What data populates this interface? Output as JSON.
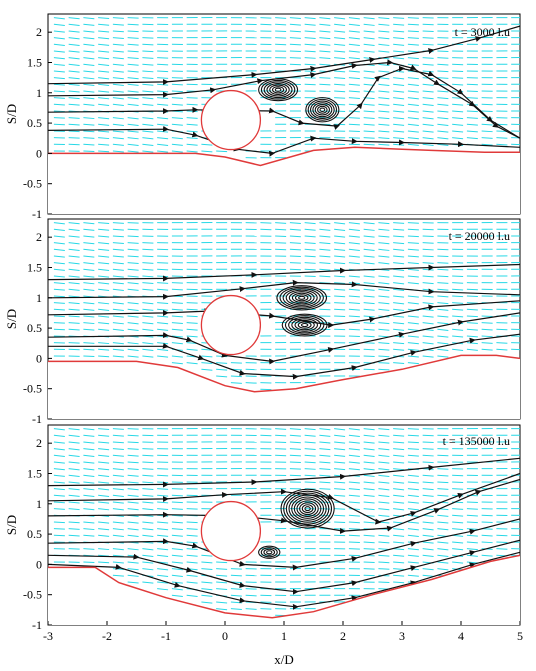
{
  "chart_data": [
    {
      "type": "flow_field",
      "annotation": "t = 3000 l.u",
      "ylabel": "S/D",
      "xlim": [
        -3,
        5
      ],
      "ylim": [
        -1,
        2.3
      ],
      "yticks": [
        "2",
        "1.5",
        "1",
        "0.5",
        "0",
        "-0.5",
        "-1"
      ],
      "cylinder": {
        "x": 0.1,
        "y": 0.55,
        "r": 0.5
      },
      "bed_profile": [
        [
          -3,
          0
        ],
        [
          -0.5,
          0
        ],
        [
          0,
          -0.06
        ],
        [
          0.6,
          -0.2
        ],
        [
          1.5,
          0.05
        ],
        [
          2.2,
          0.1
        ],
        [
          3,
          0.07
        ],
        [
          3.5,
          0.05
        ],
        [
          4.4,
          0.02
        ],
        [
          5,
          0.02
        ]
      ],
      "streamlines": [
        [
          [
            -3,
            1.15
          ],
          [
            -1,
            1.18
          ],
          [
            0.5,
            1.3
          ],
          [
            1.5,
            1.4
          ],
          [
            2.5,
            1.55
          ],
          [
            3.5,
            1.7
          ],
          [
            4.3,
            1.9
          ],
          [
            5,
            2.1
          ]
        ],
        [
          [
            -3,
            0.95
          ],
          [
            -1,
            0.97
          ],
          [
            -0.2,
            1.05
          ],
          [
            0.6,
            1.2
          ],
          [
            1.5,
            1.3
          ],
          [
            2.2,
            1.45
          ],
          [
            2.8,
            1.5
          ],
          [
            3.2,
            1.4
          ],
          [
            3.6,
            1.15
          ],
          [
            4.2,
            0.8
          ],
          [
            4.6,
            0.45
          ],
          [
            5,
            0.25
          ]
        ],
        [
          [
            -3,
            0.68
          ],
          [
            -1,
            0.7
          ],
          [
            -0.5,
            0.72
          ],
          [
            0.8,
            0.7
          ],
          [
            1.3,
            0.5
          ],
          [
            1.9,
            0.45
          ],
          [
            2.3,
            0.8
          ],
          [
            2.6,
            1.25
          ],
          [
            3,
            1.4
          ],
          [
            3.5,
            1.3
          ],
          [
            4,
            1.0
          ],
          [
            4.5,
            0.55
          ],
          [
            5,
            0.25
          ]
        ],
        [
          [
            -3,
            0.38
          ],
          [
            -1,
            0.4
          ],
          [
            -0.5,
            0.3
          ],
          [
            0.2,
            0.07
          ],
          [
            0.8,
            0.0
          ],
          [
            1.5,
            0.25
          ],
          [
            2.2,
            0.2
          ],
          [
            3,
            0.18
          ],
          [
            4,
            0.15
          ],
          [
            5,
            0.1
          ]
        ]
      ],
      "vortices": [
        {
          "x": 0.9,
          "y": 1.05,
          "rx": 0.33,
          "ry": 0.18,
          "n": 7
        },
        {
          "x": 1.65,
          "y": 0.72,
          "rx": 0.28,
          "ry": 0.2,
          "n": 7
        }
      ]
    },
    {
      "type": "flow_field",
      "annotation": "t = 20000 l.u",
      "ylabel": "S/D",
      "xlim": [
        -3,
        5
      ],
      "ylim": [
        -1,
        2.3
      ],
      "yticks": [
        "2",
        "1.5",
        "1",
        "0.5",
        "0",
        "-0.5",
        "-1"
      ],
      "cylinder": {
        "x": 0.1,
        "y": 0.55,
        "r": 0.5
      },
      "bed_profile": [
        [
          -3,
          -0.05
        ],
        [
          -1.5,
          -0.05
        ],
        [
          -0.8,
          -0.15
        ],
        [
          0,
          -0.45
        ],
        [
          0.5,
          -0.55
        ],
        [
          1.2,
          -0.5
        ],
        [
          2,
          -0.35
        ],
        [
          3,
          -0.18
        ],
        [
          4,
          0.05
        ],
        [
          4.6,
          0.05
        ],
        [
          5,
          0.0
        ]
      ],
      "streamlines": [
        [
          [
            -3,
            1.3
          ],
          [
            -1,
            1.32
          ],
          [
            0.5,
            1.38
          ],
          [
            2,
            1.45
          ],
          [
            3.5,
            1.5
          ],
          [
            5,
            1.55
          ]
        ],
        [
          [
            -3,
            1.0
          ],
          [
            -1,
            1.02
          ],
          [
            0.3,
            1.15
          ],
          [
            1.2,
            1.25
          ],
          [
            2.2,
            1.22
          ],
          [
            3.5,
            1.1
          ],
          [
            5,
            1.05
          ]
        ],
        [
          [
            -3,
            0.72
          ],
          [
            -1,
            0.75
          ],
          [
            -0.3,
            0.78
          ],
          [
            0.8,
            0.7
          ],
          [
            1.8,
            0.55
          ],
          [
            2.5,
            0.65
          ],
          [
            3.5,
            0.85
          ],
          [
            5,
            0.95
          ]
        ],
        [
          [
            -3,
            0.35
          ],
          [
            -1,
            0.38
          ],
          [
            -0.6,
            0.3
          ],
          [
            0,
            0.05
          ],
          [
            0.8,
            -0.05
          ],
          [
            1.8,
            0.15
          ],
          [
            3,
            0.4
          ],
          [
            4,
            0.6
          ],
          [
            5,
            0.75
          ]
        ],
        [
          [
            -3,
            0.2
          ],
          [
            -1,
            0.2
          ],
          [
            -0.4,
            0.0
          ],
          [
            0.3,
            -0.25
          ],
          [
            1.2,
            -0.3
          ],
          [
            2.2,
            -0.15
          ],
          [
            3.2,
            0.1
          ],
          [
            4.2,
            0.3
          ],
          [
            5,
            0.4
          ]
        ]
      ],
      "vortices": [
        {
          "x": 1.3,
          "y": 1.0,
          "rx": 0.42,
          "ry": 0.2,
          "n": 8
        },
        {
          "x": 1.35,
          "y": 0.55,
          "rx": 0.38,
          "ry": 0.18,
          "n": 7
        }
      ]
    },
    {
      "type": "flow_field",
      "annotation": "t = 135000 l.u",
      "ylabel": "S/D",
      "xlabel": "x/D",
      "xlim": [
        -3,
        5
      ],
      "ylim": [
        -1,
        2.3
      ],
      "xticks": [
        "-3",
        "-2",
        "-1",
        "0",
        "1",
        "2",
        "3",
        "4",
        "5"
      ],
      "yticks": [
        "2",
        "1.5",
        "1",
        "0.5",
        "0",
        "-0.5",
        "-1"
      ],
      "cylinder": {
        "x": 0.1,
        "y": 0.55,
        "r": 0.5
      },
      "bed_profile": [
        [
          -3,
          -0.05
        ],
        [
          -2.2,
          -0.05
        ],
        [
          -1.8,
          -0.3
        ],
        [
          -1,
          -0.55
        ],
        [
          0,
          -0.8
        ],
        [
          0.8,
          -0.88
        ],
        [
          1.5,
          -0.78
        ],
        [
          2.5,
          -0.5
        ],
        [
          3.5,
          -0.25
        ],
        [
          4.5,
          0.05
        ],
        [
          5,
          0.15
        ]
      ],
      "streamlines": [
        [
          [
            -3,
            1.3
          ],
          [
            -1,
            1.32
          ],
          [
            0.5,
            1.36
          ],
          [
            2,
            1.45
          ],
          [
            3.5,
            1.6
          ],
          [
            5,
            1.75
          ]
        ],
        [
          [
            -3,
            1.05
          ],
          [
            -1,
            1.08
          ],
          [
            0,
            1.15
          ],
          [
            1,
            1.2
          ],
          [
            1.8,
            1.1
          ],
          [
            2.6,
            0.7
          ],
          [
            3.2,
            0.85
          ],
          [
            4,
            1.15
          ],
          [
            5,
            1.5
          ]
        ],
        [
          [
            -3,
            0.8
          ],
          [
            -1,
            0.82
          ],
          [
            0.2,
            0.8
          ],
          [
            1,
            0.72
          ],
          [
            2,
            0.55
          ],
          [
            2.8,
            0.6
          ],
          [
            3.6,
            0.9
          ],
          [
            4.3,
            1.2
          ],
          [
            5,
            1.4
          ]
        ],
        [
          [
            -3,
            0.35
          ],
          [
            -1,
            0.38
          ],
          [
            -0.5,
            0.3
          ],
          [
            0.3,
            0.0
          ],
          [
            1.2,
            -0.05
          ],
          [
            2.2,
            0.1
          ],
          [
            3.2,
            0.35
          ],
          [
            4.2,
            0.55
          ],
          [
            5,
            0.75
          ]
        ],
        [
          [
            -3,
            0.15
          ],
          [
            -1.5,
            0.12
          ],
          [
            -0.6,
            -0.1
          ],
          [
            0.3,
            -0.35
          ],
          [
            1.2,
            -0.45
          ],
          [
            2.2,
            -0.3
          ],
          [
            3.2,
            -0.05
          ],
          [
            4.2,
            0.2
          ],
          [
            5,
            0.4
          ]
        ],
        [
          [
            -3,
            0.0
          ],
          [
            -1.8,
            -0.05
          ],
          [
            -0.8,
            -0.35
          ],
          [
            0.3,
            -0.6
          ],
          [
            1.2,
            -0.7
          ],
          [
            2.2,
            -0.55
          ],
          [
            3.2,
            -0.3
          ],
          [
            4.2,
            0.0
          ],
          [
            5,
            0.2
          ]
        ]
      ],
      "vortices": [
        {
          "x": 1.4,
          "y": 0.92,
          "rx": 0.45,
          "ry": 0.32,
          "n": 10
        },
        {
          "x": 0.75,
          "y": 0.2,
          "rx": 0.18,
          "ry": 0.1,
          "n": 4
        }
      ]
    }
  ],
  "colors": {
    "vectors": "#27d8e6",
    "streamlines": "#111111",
    "bed": "#e03a3a",
    "cylinder": "#e03a3a"
  }
}
